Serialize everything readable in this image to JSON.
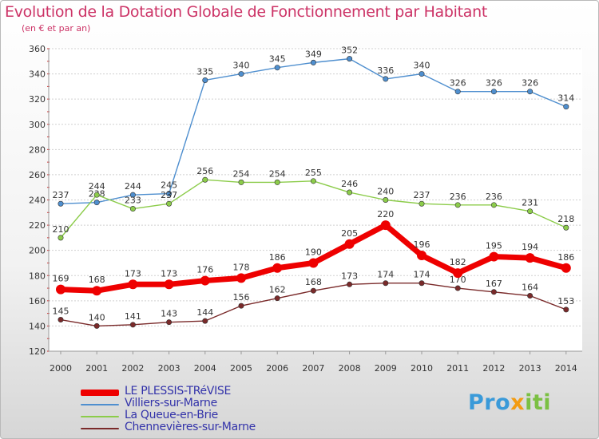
{
  "title": "Evolution de la Dotation Globale de Fonctionnement par Habitant",
  "subtitle": "(en € et par an)",
  "logo": {
    "part1": "Pro",
    "part2": "x",
    "part3": "iti"
  },
  "chart_data": {
    "type": "line",
    "title": "Evolution de la Dotation Globale de Fonctionnement par Habitant",
    "ylabel": "(en € et par an)",
    "xlabel": "",
    "ylim": [
      120,
      360
    ],
    "yticks": [
      "120",
      "140",
      "160",
      "180",
      "200",
      "220",
      "240",
      "260",
      "280",
      "300",
      "320",
      "340",
      "360"
    ],
    "categories": [
      "2000",
      "2001",
      "2002",
      "2003",
      "2004",
      "2005",
      "2006",
      "2007",
      "2008",
      "2009",
      "2010",
      "2011",
      "2012",
      "2013",
      "2014"
    ],
    "grid": "horizontal",
    "legend_position": "bottom-left",
    "series": [
      {
        "name": "LE PLESSIS-TRéVISE",
        "color": "#ee0000",
        "emphasis": true,
        "values": [
          169,
          168,
          173,
          173,
          176,
          178,
          186,
          190,
          205,
          220,
          196,
          182,
          195,
          194,
          186
        ],
        "labels": [
          "169",
          "168",
          "173",
          "173",
          "176",
          "178",
          "186",
          "190",
          "205",
          "220",
          "196",
          "182",
          "195",
          "194",
          "186"
        ]
      },
      {
        "name": "Villiers-sur-Marne",
        "color": "#4f8fcf",
        "emphasis": false,
        "values": [
          237,
          238,
          244,
          245,
          335,
          340,
          345,
          349,
          352,
          336,
          340,
          326,
          326,
          326,
          314
        ],
        "labels": [
          "237",
          "238",
          "244",
          "245",
          "335",
          "340",
          "345",
          "349",
          "352",
          "336",
          "340",
          "326",
          "326",
          "326",
          "314"
        ]
      },
      {
        "name": "La Queue-en-Brie",
        "color": "#8ccc4a",
        "emphasis": false,
        "values": [
          210,
          244,
          233,
          237,
          256,
          254,
          254,
          255,
          246,
          240,
          237,
          236,
          236,
          231,
          218
        ],
        "labels": [
          "210",
          "244",
          "233",
          "237",
          "256",
          "254",
          "254",
          "255",
          "246",
          "240",
          "237",
          "236",
          "236",
          "231",
          "218"
        ]
      },
      {
        "name": "Chennevières-sur-Marne",
        "color": "#7a2a2a",
        "emphasis": false,
        "values": [
          145,
          140,
          141,
          143,
          144,
          156,
          162,
          168,
          173,
          174,
          174,
          170,
          167,
          164,
          153
        ],
        "labels": [
          "145",
          "140",
          "141",
          "143",
          "144",
          "156",
          "162",
          "168",
          "173",
          "174",
          "174",
          "170",
          "167",
          "164",
          "153"
        ]
      }
    ]
  }
}
